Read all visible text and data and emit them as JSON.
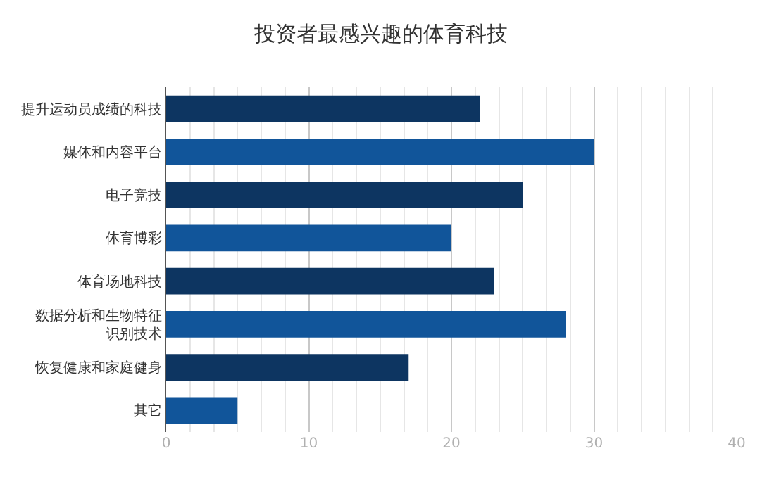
{
  "chart_data": {
    "type": "bar",
    "orientation": "horizontal",
    "title": "投资者最感兴趣的体育科技",
    "categories": [
      "提升运动员成绩的科技",
      "媒体和内容平台",
      "电子竞技",
      "体育博彩",
      "体育场地科技",
      "数据分析和生物特征识别技术",
      "恢复健康和家庭健身",
      "其它"
    ],
    "values": [
      22,
      30,
      25,
      20,
      23,
      28,
      17,
      5
    ],
    "colors": [
      "#0d3561",
      "#11559a",
      "#0d3561",
      "#11559a",
      "#0d3561",
      "#11559a",
      "#0d3561",
      "#11559a"
    ],
    "xlim": [
      0,
      40
    ],
    "xticks": [
      0,
      10,
      20,
      30,
      40
    ],
    "grid": "x"
  }
}
